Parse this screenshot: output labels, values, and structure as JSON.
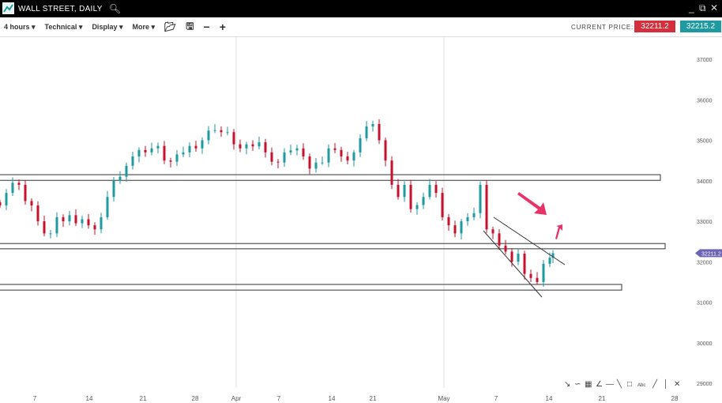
{
  "window": {
    "title": "WALL STREET, DAILY",
    "search_icon": "search-icon",
    "controls": [
      "minimize-icon",
      "popout-icon",
      "close-icon"
    ]
  },
  "toolbar": {
    "timeframe": "4 hours",
    "technical": "Technical",
    "display": "Display",
    "more": "More",
    "current_price_label": "CURRENT PRICE:",
    "bid": "32211.2",
    "ask": "32215.2",
    "bid_color": "#d32f3c",
    "ask_color": "#1f9aa0"
  },
  "drawing_tools": [
    "cursor-icon",
    "curve-icon",
    "grid-icon",
    "fan-icon",
    "horizontal-line-icon",
    "trendline-icon",
    "rectangle-icon",
    "text-icon",
    "line-icon",
    "vertical-line-icon",
    "delete-icon"
  ],
  "chart_data": {
    "type": "candlestick",
    "y_ticks": [
      37000,
      36000,
      35000,
      34000,
      33000,
      32000,
      31000,
      30000,
      29000
    ],
    "ylim": [
      29000,
      37000
    ],
    "x_ticks": [
      "7",
      "14",
      "21",
      "28",
      "Apr",
      "7",
      "14",
      "21",
      "May",
      "7",
      "14",
      "21",
      "28"
    ],
    "last_price_label": "32211.2",
    "closes": [
      33390,
      33700,
      33950,
      33900,
      33500,
      33390,
      33000,
      32700,
      32700,
      33100,
      33000,
      33150,
      32950,
      33050,
      32900,
      32800,
      33100,
      33600,
      34000,
      34100,
      34370,
      34600,
      34760,
      34700,
      34800,
      34860,
      34500,
      34470,
      34650,
      34700,
      34860,
      34800,
      35000,
      35240,
      35250,
      35200,
      35200,
      34900,
      34800,
      34900,
      34850,
      34950,
      34700,
      34470,
      34450,
      34700,
      34750,
      34800,
      34600,
      34300,
      34450,
      34450,
      34800,
      34760,
      34600,
      34500,
      34700,
      35050,
      35340,
      35400,
      35000,
      34500,
      33900,
      33600,
      33900,
      33300,
      33400,
      33600,
      33900,
      33700,
      33100,
      32900,
      32700,
      33000,
      33100,
      33200,
      33900,
      32800,
      32700,
      32400,
      32250,
      32000,
      32200,
      31700,
      31600,
      31500,
      31950,
      32100,
      32211
    ],
    "zones": [
      {
        "top": 34150,
        "bottom": 34010
      },
      {
        "top": 32450,
        "bottom": 32320
      },
      {
        "top": 31440,
        "bottom": 31300
      }
    ],
    "colors": {
      "up": "#1f9aa0",
      "down": "#c8102e",
      "arrow": "#e8336a",
      "price_tag": "#6c63b5"
    }
  }
}
